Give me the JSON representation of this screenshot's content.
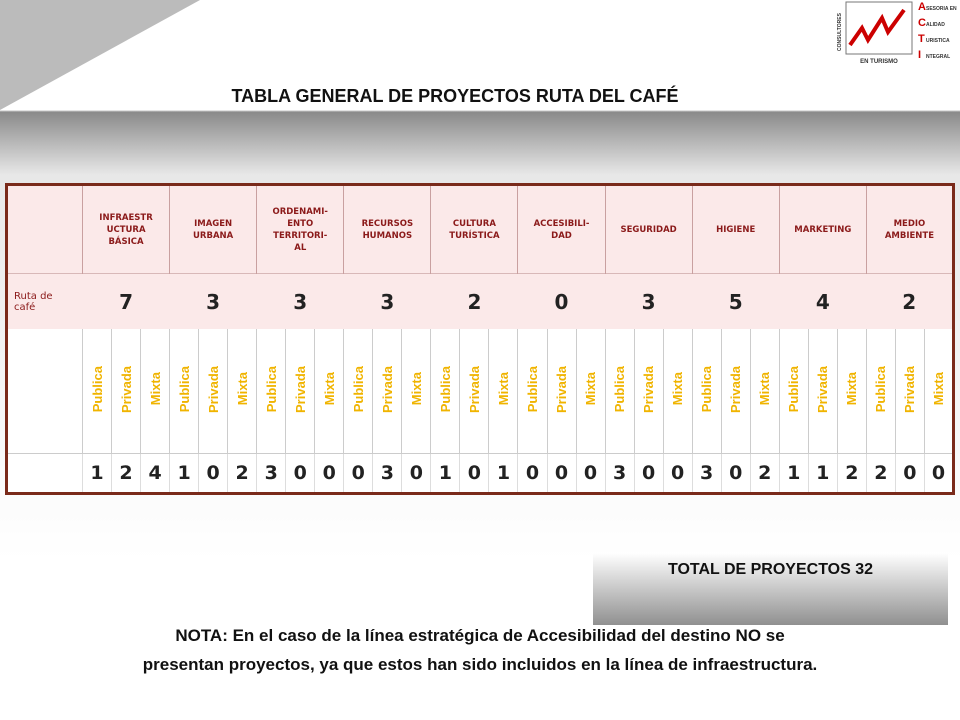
{
  "header": {
    "title": "TABLA GENERAL DE PROYECTOS RUTA DEL CAFÉ"
  },
  "logo": {
    "top": "CONSULTORES",
    "bottom": "EN TURISMO",
    "initials": [
      "A",
      "C",
      "T",
      "I"
    ],
    "lines": [
      "SESORIA EN",
      "ALIDAD",
      "URISTICA",
      "NTEGRAL"
    ]
  },
  "table": {
    "row_label": "Ruta de\ncafé",
    "sub_headers": [
      "Publica",
      "Privada",
      "Mixta"
    ],
    "columns": [
      {
        "name": "INFRAESTR\nUCTURA\nBÁSICA",
        "total": 7,
        "values": [
          1,
          2,
          4
        ]
      },
      {
        "name": "IMAGEN\nURBANA",
        "total": 3,
        "values": [
          1,
          0,
          2
        ]
      },
      {
        "name": "ORDENAMI-\nENTO\nTERRITORI-\nAL",
        "total": 3,
        "values": [
          3,
          0,
          0
        ]
      },
      {
        "name": "RECURSOS\nHUMANOS",
        "total": 3,
        "values": [
          0,
          3,
          0
        ]
      },
      {
        "name": "CULTURA\nTURÍSTICA",
        "total": 2,
        "values": [
          1,
          0,
          1
        ]
      },
      {
        "name": "ACCESIBILI-\nDAD",
        "total": 0,
        "values": [
          0,
          0,
          0
        ]
      },
      {
        "name": "SEGURIDAD",
        "total": 3,
        "values": [
          3,
          0,
          0
        ]
      },
      {
        "name": "HIGIENE",
        "total": 5,
        "values": [
          3,
          0,
          2
        ]
      },
      {
        "name": "MARKETING",
        "total": 4,
        "values": [
          1,
          1,
          2
        ]
      },
      {
        "name": "MEDIO\nAMBIENTE",
        "total": 2,
        "values": [
          2,
          0,
          0
        ]
      }
    ]
  },
  "total": "TOTAL DE PROYECTOS 32",
  "note": [
    "NOTA: En el caso de la línea estratégica de Accesibilidad del destino NO se",
    "presentan proyectos, ya que estos han sido incluidos en la línea de infraestructura."
  ]
}
